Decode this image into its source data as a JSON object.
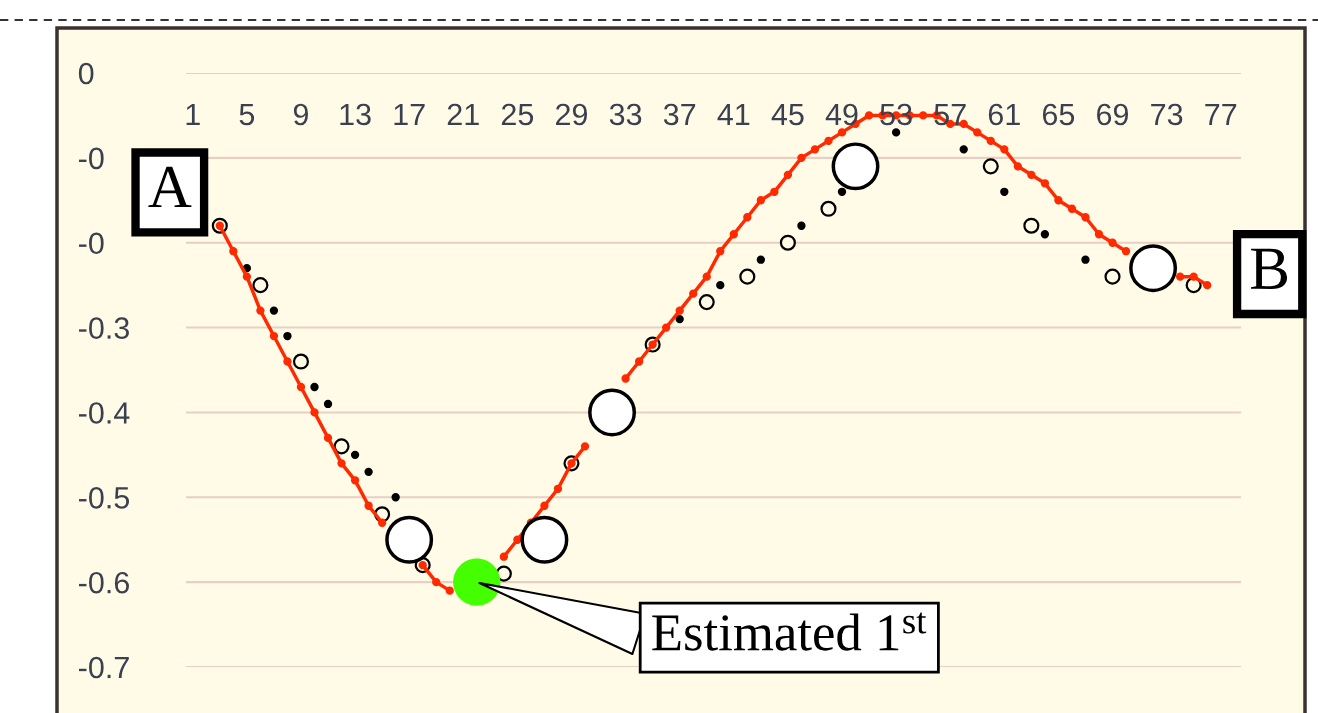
{
  "chart_data": {
    "type": "line",
    "xlim": [
      0.5,
      78.5
    ],
    "xticks": [
      1,
      5,
      9,
      13,
      17,
      21,
      25,
      29,
      33,
      37,
      41,
      45,
      49,
      53,
      57,
      61,
      65,
      69,
      73,
      77
    ],
    "ylim": [
      -0.7,
      0
    ],
    "yticks": [
      0,
      {
        "value": -0.1,
        "label": "-0"
      },
      {
        "value": -0.2,
        "label": "-0"
      },
      -0.3,
      -0.4,
      -0.5,
      -0.6,
      -0.7
    ],
    "grid": "y",
    "series": [
      {
        "color": "#ff2a00",
        "marker": "circle",
        "line_style": "solid",
        "x": [
          3,
          4,
          5,
          6,
          7,
          8,
          9,
          10,
          11,
          12,
          13,
          14,
          15,
          16,
          17,
          18,
          19,
          20,
          21,
          22,
          23,
          24,
          25,
          26,
          27,
          28,
          29,
          30,
          31,
          32,
          33,
          34,
          35,
          36,
          37,
          38,
          39,
          40,
          41,
          42,
          43,
          44,
          45,
          46,
          47,
          48,
          49,
          50,
          51,
          52,
          53,
          54,
          55,
          56,
          57,
          58,
          59,
          60,
          61,
          62,
          63,
          64,
          65,
          66,
          67,
          68,
          69,
          70,
          71,
          72,
          73,
          74,
          75,
          76
        ],
        "values": [
          -0.18,
          -0.21,
          -0.24,
          -0.28,
          -0.31,
          -0.34,
          -0.37,
          -0.4,
          -0.43,
          -0.46,
          -0.48,
          -0.51,
          -0.53,
          null,
          null,
          -0.58,
          -0.6,
          -0.61,
          null,
          null,
          null,
          -0.57,
          -0.55,
          -0.53,
          -0.51,
          -0.49,
          -0.46,
          -0.44,
          null,
          null,
          -0.36,
          -0.34,
          -0.32,
          -0.3,
          -0.28,
          -0.26,
          -0.24,
          -0.21,
          -0.19,
          -0.17,
          -0.15,
          -0.14,
          -0.12,
          -0.1,
          -0.09,
          -0.08,
          -0.07,
          -0.06,
          -0.05,
          -0.05,
          -0.05,
          -0.05,
          -0.05,
          -0.05,
          -0.06,
          -0.06,
          -0.07,
          -0.08,
          -0.09,
          -0.11,
          -0.12,
          -0.13,
          -0.15,
          -0.16,
          -0.17,
          -0.19,
          -0.2,
          -0.21,
          null,
          null,
          null,
          -0.24,
          -0.24,
          -0.25
        ]
      },
      {
        "type": "scatter",
        "color": "#000000",
        "marker": "circle",
        "x": [
          5,
          7,
          8,
          10,
          11,
          13,
          14,
          16,
          37,
          40,
          43,
          46,
          49,
          51,
          53,
          58,
          61,
          64,
          67
        ],
        "values": [
          -0.23,
          -0.28,
          -0.31,
          -0.37,
          -0.39,
          -0.45,
          -0.47,
          -0.5,
          -0.29,
          -0.25,
          -0.22,
          -0.18,
          -0.14,
          null,
          -0.07,
          -0.09,
          -0.14,
          -0.19,
          -0.22
        ]
      },
      {
        "type": "scatter",
        "color": "#fffbe6",
        "marker": "circle",
        "x": [
          3,
          6,
          9,
          12,
          15,
          18,
          24,
          29,
          35,
          39,
          42,
          45,
          48,
          54,
          60,
          63,
          66,
          69,
          75
        ],
        "values": [
          -0.18,
          -0.25,
          -0.34,
          -0.44,
          -0.52,
          -0.58,
          -0.59,
          -0.46,
          -0.32,
          -0.27,
          -0.24,
          -0.2,
          -0.16,
          null,
          -0.11,
          -0.18,
          null,
          -0.24,
          -0.25
        ]
      },
      {
        "type": "scatter",
        "color": "#ffffff",
        "marker": "circle",
        "x": [
          17,
          27,
          32,
          50,
          72
        ],
        "values": [
          -0.55,
          -0.55,
          -0.4,
          -0.11,
          -0.23
        ]
      },
      {
        "type": "scatter",
        "color": "#44ff00",
        "marker": "circle",
        "x": [
          22
        ],
        "values": [
          -0.6
        ]
      }
    ],
    "annotations": [
      {
        "text": "A",
        "x": 3,
        "y": -0.18
      },
      {
        "text": "B",
        "x": 76,
        "y": -0.25
      },
      {
        "text": "Estimated 1$^{st}$",
        "x": 22,
        "y": -0.6
      }
    ]
  }
}
